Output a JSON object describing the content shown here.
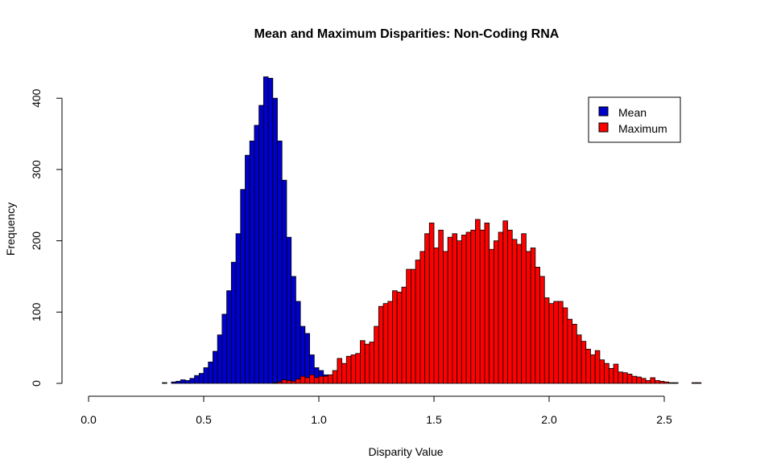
{
  "chart_data": {
    "type": "bar",
    "title": "Mean and Maximum Disparities: Non-Coding RNA",
    "xlabel": "Disparity Value",
    "ylabel": "Frequency",
    "xlim": [
      0.0,
      2.55
    ],
    "ylim": [
      0,
      430
    ],
    "x_ticks": [
      "0.0",
      "0.5",
      "1.0",
      "1.5",
      "2.0",
      "2.5"
    ],
    "y_ticks": [
      "0",
      "100",
      "200",
      "300",
      "400"
    ],
    "bin_width": 0.02,
    "legend": {
      "position": "top-right",
      "entries": [
        "Mean",
        "Maximum"
      ]
    },
    "series": [
      {
        "name": "Mean",
        "color": "#0000CC",
        "bin_start": 0.32,
        "values": [
          1,
          0,
          2,
          3,
          5,
          4,
          7,
          11,
          14,
          22,
          30,
          45,
          68,
          97,
          130,
          170,
          210,
          272,
          320,
          340,
          362,
          390,
          430,
          428,
          400,
          340,
          285,
          205,
          150,
          115,
          80,
          70,
          40,
          22,
          18,
          12,
          8,
          5,
          10,
          6,
          4,
          3,
          2,
          1
        ]
      },
      {
        "name": "Maximum",
        "color": "#FF0000",
        "bin_start": 0.8,
        "values": [
          1,
          2,
          5,
          4,
          3,
          6,
          10,
          8,
          12,
          8,
          10,
          10,
          12,
          18,
          35,
          28,
          38,
          40,
          42,
          60,
          55,
          58,
          80,
          108,
          112,
          115,
          130,
          128,
          135,
          160,
          160,
          173,
          185,
          210,
          225,
          190,
          215,
          185,
          205,
          210,
          200,
          208,
          212,
          215,
          230,
          215,
          225,
          188,
          200,
          212,
          228,
          215,
          202,
          195,
          210,
          185,
          190,
          163,
          150,
          120,
          112,
          115,
          115,
          106,
          90,
          83,
          68,
          59,
          48,
          40,
          46,
          33,
          28,
          21,
          27,
          16,
          15,
          13,
          10,
          9,
          7,
          4,
          8,
          4,
          3,
          2,
          1,
          1,
          0,
          0,
          0,
          1,
          1
        ]
      }
    ]
  }
}
